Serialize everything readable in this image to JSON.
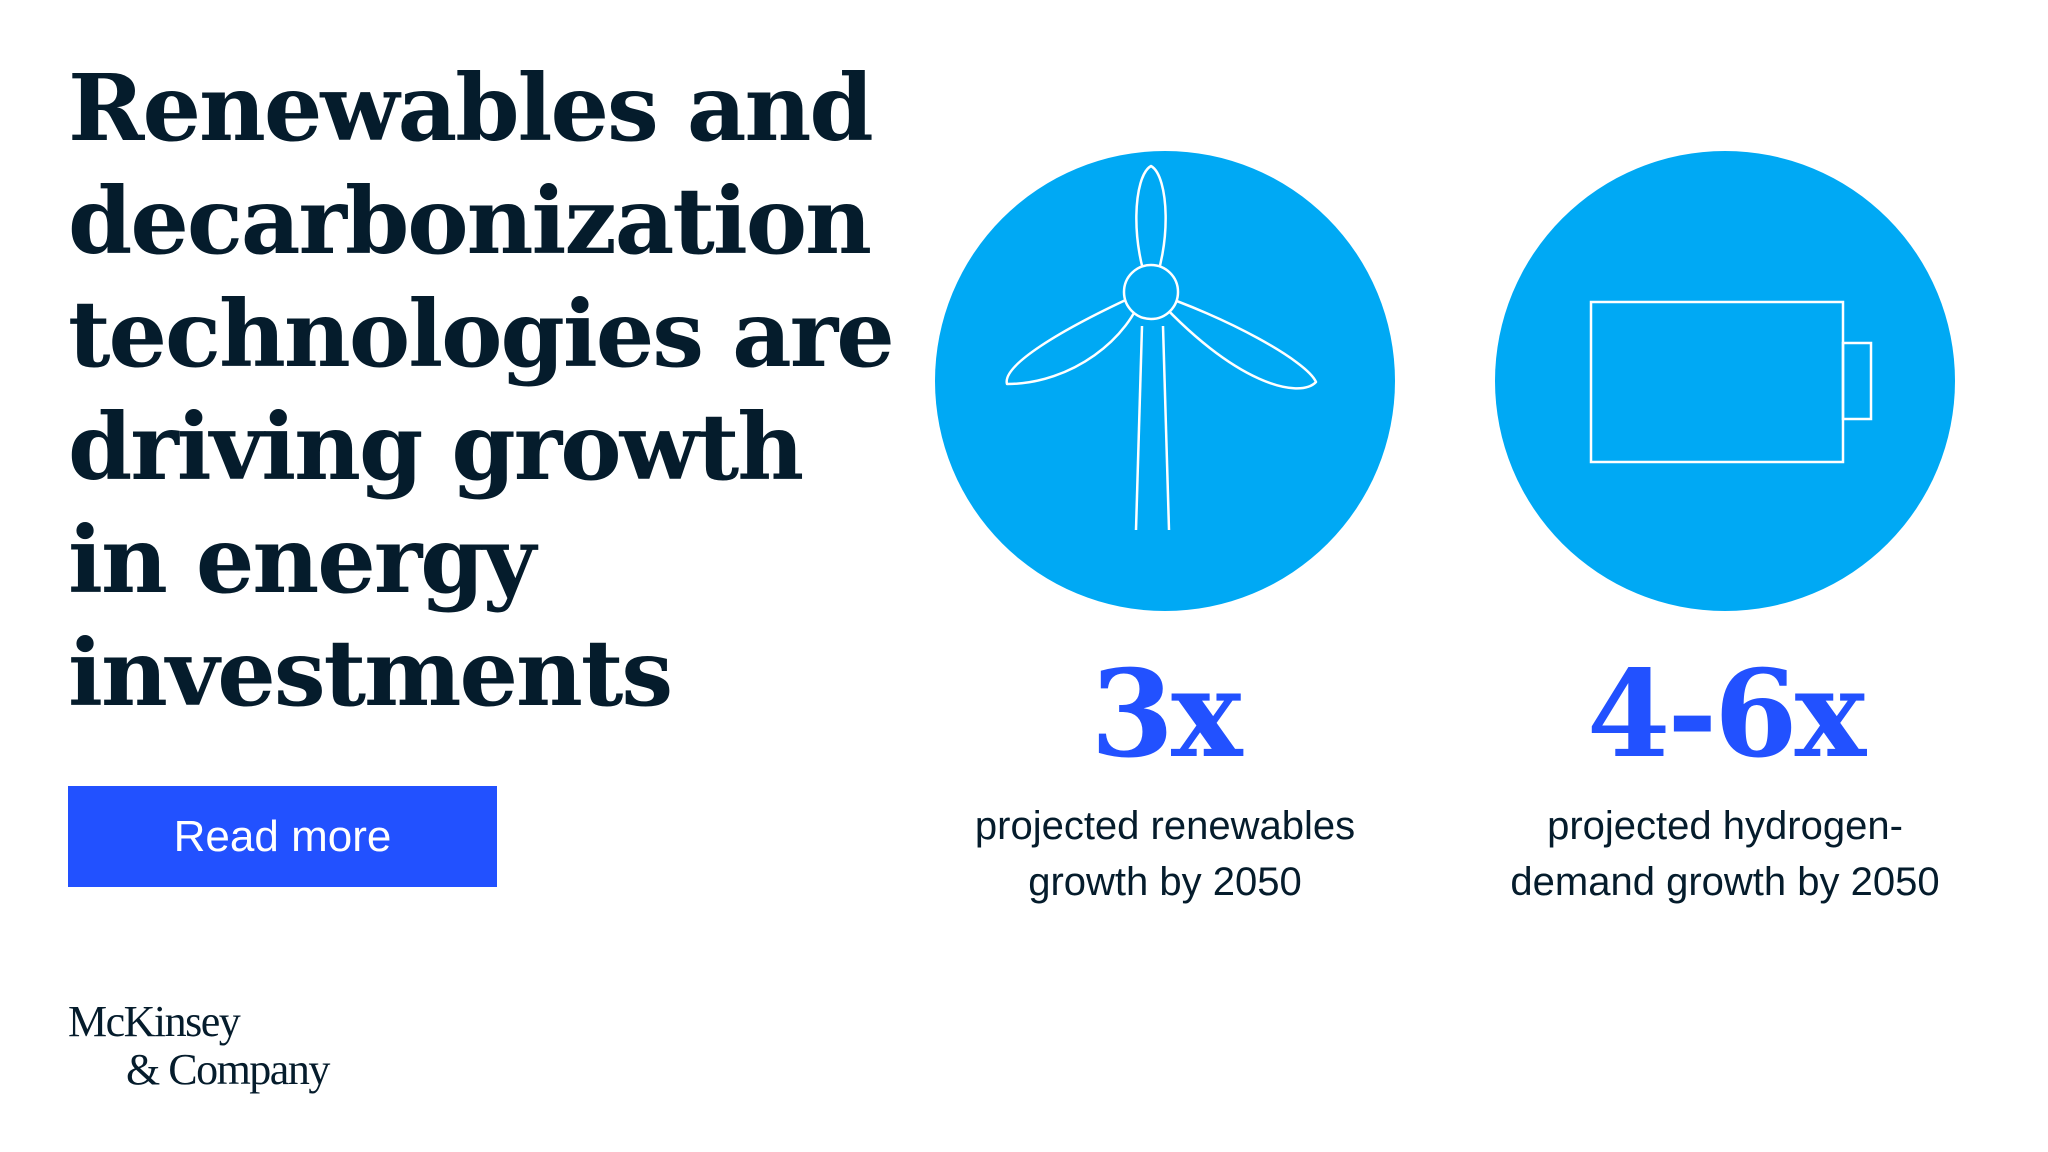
{
  "headline": {
    "lines": [
      "Renewables and",
      "decarbonization",
      "technologies are",
      "driving growth",
      "in energy",
      "investments"
    ]
  },
  "cta": {
    "label": "Read more"
  },
  "logo": {
    "line1": "McKinsey",
    "line2": "& Company"
  },
  "stats": [
    {
      "icon": "wind-turbine-icon",
      "value": "3x",
      "caption": [
        "projected renewables",
        "growth by 2050"
      ]
    },
    {
      "icon": "battery-icon",
      "value": "4-6x",
      "caption": [
        "projected hydrogen-",
        "demand growth by 2050"
      ]
    }
  ],
  "colors": {
    "navy": "#051c2c",
    "accent_blue": "#2251ff",
    "circle_cyan": "#00a9f4"
  }
}
